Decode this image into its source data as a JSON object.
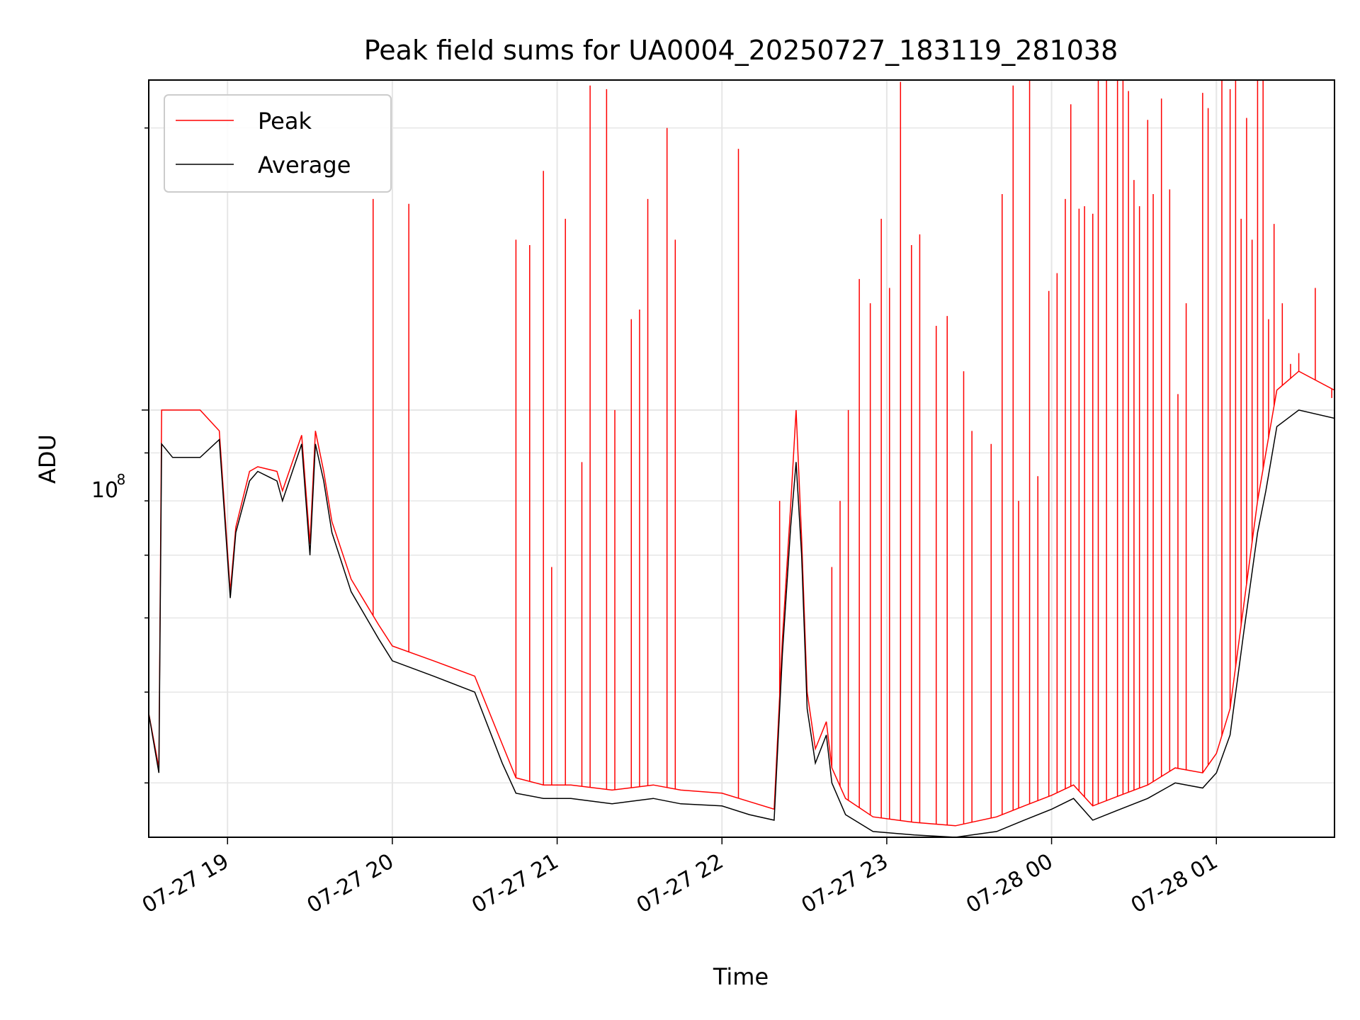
{
  "chart_data": {
    "type": "line",
    "title": "Peak field sums for UA0004_20250727_183119_281038",
    "xlabel": "Time",
    "ylabel": "ADU",
    "y_scale": "log",
    "ylim": [
      35000000,
      225000000
    ],
    "xlim": [
      "2025-07-27 18:31:19",
      "2025-07-28 01:43:00"
    ],
    "grid": true,
    "legend_position": "top-left",
    "x_tick_labels": [
      "07-27 19",
      "07-27 20",
      "07-27 21",
      "07-27 22",
      "07-27 23",
      "07-28 00",
      "07-28 01"
    ],
    "x_tick_times": [
      "2025-07-27 19:00",
      "2025-07-27 20:00",
      "2025-07-27 21:00",
      "2025-07-27 22:00",
      "2025-07-27 23:00",
      "2025-07-28 00:00",
      "2025-07-28 01:00"
    ],
    "y_tick_label": "10^8",
    "colors": {
      "peak": "#ff0000",
      "average": "#000000",
      "grid": "#e6e6e6"
    },
    "series": [
      {
        "name": "Average",
        "x": [
          "2025-07-27 18:31",
          "2025-07-27 18:35",
          "2025-07-27 18:36",
          "2025-07-27 18:40",
          "2025-07-27 18:50",
          "2025-07-27 18:57",
          "2025-07-27 19:01",
          "2025-07-27 19:03",
          "2025-07-27 19:08",
          "2025-07-27 19:11",
          "2025-07-27 19:18",
          "2025-07-27 19:20",
          "2025-07-27 19:27",
          "2025-07-27 19:30",
          "2025-07-27 19:32",
          "2025-07-27 19:35",
          "2025-07-27 19:38",
          "2025-07-27 19:45",
          "2025-07-27 19:55",
          "2025-07-27 20:00",
          "2025-07-27 20:15",
          "2025-07-27 20:30",
          "2025-07-27 20:40",
          "2025-07-27 20:45",
          "2025-07-27 20:55",
          "2025-07-27 21:05",
          "2025-07-27 21:20",
          "2025-07-27 21:35",
          "2025-07-27 21:45",
          "2025-07-27 22:00",
          "2025-07-27 22:10",
          "2025-07-27 22:19",
          "2025-07-27 22:22",
          "2025-07-27 22:25",
          "2025-07-27 22:27",
          "2025-07-27 22:29",
          "2025-07-27 22:31",
          "2025-07-27 22:34",
          "2025-07-27 22:38",
          "2025-07-27 22:40",
          "2025-07-27 22:45",
          "2025-07-27 22:55",
          "2025-07-27 23:10",
          "2025-07-27 23:25",
          "2025-07-27 23:40",
          "2025-07-27 23:50",
          "2025-07-28 00:00",
          "2025-07-28 00:08",
          "2025-07-28 00:15",
          "2025-07-28 00:25",
          "2025-07-28 00:35",
          "2025-07-28 00:45",
          "2025-07-28 00:55",
          "2025-07-28 01:00",
          "2025-07-28 01:05",
          "2025-07-28 01:10",
          "2025-07-28 01:15",
          "2025-07-28 01:18",
          "2025-07-28 01:22",
          "2025-07-28 01:30",
          "2025-07-28 01:43"
        ],
        "values": [
          48000000,
          41000000,
          92000000,
          89000000,
          89000000,
          93000000,
          63000000,
          74000000,
          84000000,
          86000000,
          84000000,
          80000000,
          92000000,
          70000000,
          92000000,
          84000000,
          74000000,
          64000000,
          57000000,
          54000000,
          52000000,
          50000000,
          42000000,
          39000000,
          38500000,
          38500000,
          38000000,
          38500000,
          38000000,
          37800000,
          37000000,
          36500000,
          55000000,
          75000000,
          88000000,
          70000000,
          48000000,
          42000000,
          45000000,
          40000000,
          37000000,
          35500000,
          35200000,
          35000000,
          35500000,
          36500000,
          37500000,
          38500000,
          36500000,
          37500000,
          38500000,
          40000000,
          39500000,
          41000000,
          45000000,
          58000000,
          74000000,
          82000000,
          96000000,
          100000000,
          98000000
        ]
      },
      {
        "name": "Peak",
        "x": [
          "2025-07-27 18:31",
          "2025-07-27 18:35",
          "2025-07-27 18:36",
          "2025-07-27 18:40",
          "2025-07-27 18:50",
          "2025-07-27 18:57",
          "2025-07-27 19:01",
          "2025-07-27 19:03",
          "2025-07-27 19:08",
          "2025-07-27 19:11",
          "2025-07-27 19:18",
          "2025-07-27 19:20",
          "2025-07-27 19:27",
          "2025-07-27 19:30",
          "2025-07-27 19:32",
          "2025-07-27 19:35",
          "2025-07-27 19:38",
          "2025-07-27 19:45",
          "2025-07-27 19:55",
          "2025-07-27 20:00",
          "2025-07-27 20:15",
          "2025-07-27 20:30",
          "2025-07-27 20:40",
          "2025-07-27 20:45",
          "2025-07-27 20:55",
          "2025-07-27 21:05",
          "2025-07-27 21:20",
          "2025-07-27 21:35",
          "2025-07-27 21:45",
          "2025-07-27 22:00",
          "2025-07-27 22:10",
          "2025-07-27 22:19",
          "2025-07-27 22:22",
          "2025-07-27 22:25",
          "2025-07-27 22:27",
          "2025-07-27 22:29",
          "2025-07-27 22:31",
          "2025-07-27 22:34",
          "2025-07-27 22:38",
          "2025-07-27 22:40",
          "2025-07-27 22:45",
          "2025-07-27 22:55",
          "2025-07-27 23:10",
          "2025-07-27 23:25",
          "2025-07-27 23:40",
          "2025-07-27 23:50",
          "2025-07-28 00:00",
          "2025-07-28 00:08",
          "2025-07-28 00:15",
          "2025-07-28 00:25",
          "2025-07-28 00:35",
          "2025-07-28 00:45",
          "2025-07-28 00:55",
          "2025-07-28 01:00",
          "2025-07-28 01:05",
          "2025-07-28 01:10",
          "2025-07-28 01:15",
          "2025-07-28 01:18",
          "2025-07-28 01:22",
          "2025-07-28 01:30",
          "2025-07-28 01:43"
        ],
        "values": [
          48000000,
          41500000,
          100000000,
          100000000,
          100000000,
          95000000,
          64000000,
          75000000,
          86000000,
          87000000,
          86000000,
          82000000,
          94000000,
          72000000,
          95000000,
          86000000,
          76000000,
          66000000,
          59000000,
          56000000,
          54000000,
          52000000,
          44000000,
          40500000,
          39800000,
          39800000,
          39300000,
          39800000,
          39300000,
          39000000,
          38200000,
          37500000,
          57000000,
          79000000,
          100000000,
          73000000,
          50000000,
          43500000,
          46500000,
          41500000,
          38500000,
          36800000,
          36300000,
          36000000,
          36800000,
          37800000,
          38800000,
          39800000,
          37800000,
          38800000,
          39800000,
          41500000,
          41000000,
          43000000,
          48000000,
          62000000,
          80000000,
          90000000,
          105000000,
          110000000,
          105000000
        ],
        "spikes": {
          "x": [
            "2025-07-27 19:53",
            "2025-07-27 20:06",
            "2025-07-27 20:45",
            "2025-07-27 20:50",
            "2025-07-27 20:55",
            "2025-07-27 20:58",
            "2025-07-27 21:03",
            "2025-07-27 21:09",
            "2025-07-27 21:12",
            "2025-07-27 21:18",
            "2025-07-27 21:21",
            "2025-07-27 21:27",
            "2025-07-27 21:30",
            "2025-07-27 21:33",
            "2025-07-27 21:40",
            "2025-07-27 21:43",
            "2025-07-27 22:06",
            "2025-07-27 22:21",
            "2025-07-27 22:40",
            "2025-07-27 22:43",
            "2025-07-27 22:46",
            "2025-07-27 22:50",
            "2025-07-27 22:54",
            "2025-07-27 22:58",
            "2025-07-27 23:01",
            "2025-07-27 23:05",
            "2025-07-27 23:09",
            "2025-07-27 23:12",
            "2025-07-27 23:18",
            "2025-07-27 23:22",
            "2025-07-27 23:28",
            "2025-07-27 23:31",
            "2025-07-27 23:38",
            "2025-07-27 23:42",
            "2025-07-27 23:46",
            "2025-07-27 23:48",
            "2025-07-27 23:52",
            "2025-07-27 23:55",
            "2025-07-27 23:59",
            "2025-07-28 00:02",
            "2025-07-28 00:05",
            "2025-07-28 00:07",
            "2025-07-28 00:10",
            "2025-07-28 00:12",
            "2025-07-28 00:15",
            "2025-07-28 00:17",
            "2025-07-28 00:20",
            "2025-07-28 00:24",
            "2025-07-28 00:26",
            "2025-07-28 00:28",
            "2025-07-28 00:30",
            "2025-07-28 00:32",
            "2025-07-28 00:35",
            "2025-07-28 00:37",
            "2025-07-28 00:40",
            "2025-07-28 00:43",
            "2025-07-28 00:46",
            "2025-07-28 00:49",
            "2025-07-28 00:55",
            "2025-07-28 00:57",
            "2025-07-28 01:02",
            "2025-07-28 01:05",
            "2025-07-28 01:07",
            "2025-07-28 01:09",
            "2025-07-28 01:11",
            "2025-07-28 01:13",
            "2025-07-28 01:15",
            "2025-07-28 01:17",
            "2025-07-28 01:19",
            "2025-07-28 01:21",
            "2025-07-28 01:24",
            "2025-07-28 01:27",
            "2025-07-28 01:30",
            "2025-07-28 01:36",
            "2025-07-28 01:42"
          ],
          "values": [
            168000000,
            166000000,
            152000000,
            150000000,
            180000000,
            68000000,
            160000000,
            88000000,
            222000000,
            220000000,
            100000000,
            125000000,
            128000000,
            168000000,
            200000000,
            152000000,
            190000000,
            80000000,
            68000000,
            80000000,
            100000000,
            138000000,
            130000000,
            160000000,
            135000000,
            224000000,
            150000000,
            154000000,
            123000000,
            126000000,
            110000000,
            95000000,
            92000000,
            170000000,
            222000000,
            80000000,
            225000000,
            85000000,
            134000000,
            140000000,
            168000000,
            212000000,
            164000000,
            165000000,
            162000000,
            225000000,
            225000000,
            225000000,
            226000000,
            219000000,
            176000000,
            165000000,
            204000000,
            170000000,
            215000000,
            172000000,
            104000000,
            130000000,
            218000000,
            210000000,
            225000000,
            220000000,
            225000000,
            160000000,
            205000000,
            152000000,
            225000000,
            230000000,
            125000000,
            158000000,
            130000000,
            112000000,
            115000000,
            135000000,
            103000000
          ]
        }
      }
    ],
    "legend": [
      {
        "label": "Peak"
      },
      {
        "label": "Average"
      }
    ]
  }
}
